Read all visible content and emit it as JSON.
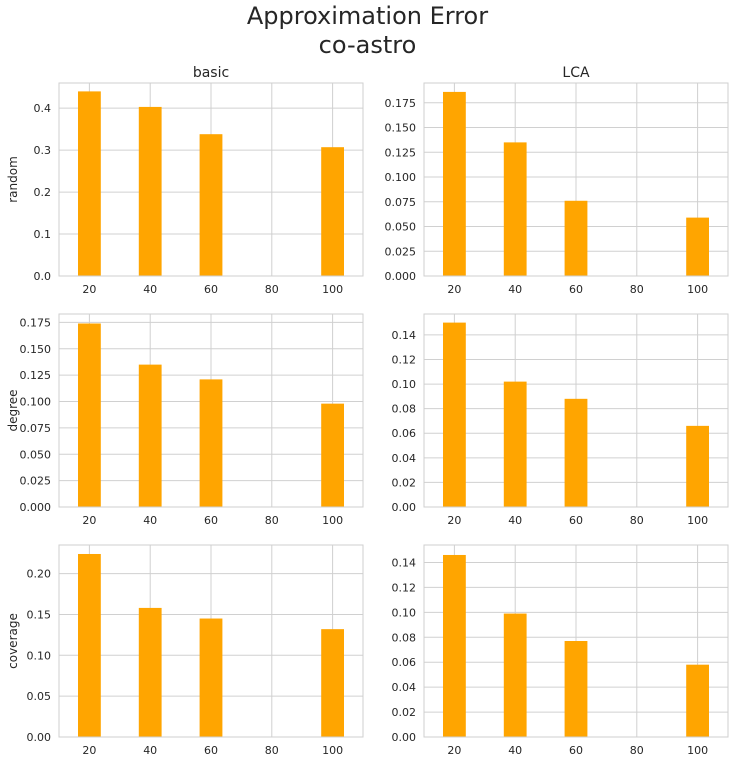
{
  "figure": {
    "title_line1": "Approximation Error",
    "title_line2": "co-astro"
  },
  "colors": {
    "bar": "#FFA500",
    "grid": "#d0d0d0",
    "frame": "#cfcfcf"
  },
  "chart_data": [
    {
      "type": "bar",
      "row": "random",
      "column": "basic",
      "title": "basic",
      "ylabel": "random",
      "x": [
        20,
        40,
        60,
        100
      ],
      "values": [
        0.44,
        0.403,
        0.338,
        0.307
      ],
      "ylim": [
        0,
        0.46
      ],
      "yticks": [
        "0.0",
        "0.1",
        "0.2",
        "0.3",
        "0.4"
      ],
      "ytick_values": [
        0,
        0.1,
        0.2,
        0.3,
        0.4
      ],
      "xlim": [
        10,
        110
      ],
      "xticks": [
        20,
        40,
        60,
        80,
        100
      ],
      "grid": true
    },
    {
      "type": "bar",
      "row": "random",
      "column": "LCA",
      "title": "LCA",
      "ylabel": "",
      "x": [
        20,
        40,
        60,
        100
      ],
      "values": [
        0.186,
        0.135,
        0.076,
        0.059
      ],
      "ylim": [
        0,
        0.195
      ],
      "yticks": [
        "0.000",
        "0.025",
        "0.050",
        "0.075",
        "0.100",
        "0.125",
        "0.150",
        "0.175"
      ],
      "ytick_values": [
        0,
        0.025,
        0.05,
        0.075,
        0.1,
        0.125,
        0.15,
        0.175
      ],
      "xlim": [
        10,
        110
      ],
      "xticks": [
        20,
        40,
        60,
        80,
        100
      ],
      "grid": true
    },
    {
      "type": "bar",
      "row": "degree",
      "column": "basic",
      "title": "",
      "ylabel": "degree",
      "x": [
        20,
        40,
        60,
        100
      ],
      "values": [
        0.174,
        0.135,
        0.121,
        0.098
      ],
      "ylim": [
        0,
        0.183
      ],
      "yticks": [
        "0.000",
        "0.025",
        "0.050",
        "0.075",
        "0.100",
        "0.125",
        "0.150",
        "0.175"
      ],
      "ytick_values": [
        0,
        0.025,
        0.05,
        0.075,
        0.1,
        0.125,
        0.15,
        0.175
      ],
      "xlim": [
        10,
        110
      ],
      "xticks": [
        20,
        40,
        60,
        80,
        100
      ],
      "grid": true
    },
    {
      "type": "bar",
      "row": "degree",
      "column": "LCA",
      "title": "",
      "ylabel": "",
      "x": [
        20,
        40,
        60,
        100
      ],
      "values": [
        0.15,
        0.102,
        0.088,
        0.066
      ],
      "ylim": [
        0,
        0.157
      ],
      "yticks": [
        "0.00",
        "0.02",
        "0.04",
        "0.06",
        "0.08",
        "0.10",
        "0.12",
        "0.14"
      ],
      "ytick_values": [
        0,
        0.02,
        0.04,
        0.06,
        0.08,
        0.1,
        0.12,
        0.14
      ],
      "xlim": [
        10,
        110
      ],
      "xticks": [
        20,
        40,
        60,
        80,
        100
      ],
      "grid": true
    },
    {
      "type": "bar",
      "row": "coverage",
      "column": "basic",
      "title": "",
      "ylabel": "coverage",
      "x": [
        20,
        40,
        60,
        100
      ],
      "values": [
        0.224,
        0.158,
        0.145,
        0.132
      ],
      "ylim": [
        0,
        0.235
      ],
      "yticks": [
        "0.00",
        "0.05",
        "0.10",
        "0.15",
        "0.20"
      ],
      "ytick_values": [
        0,
        0.05,
        0.1,
        0.15,
        0.2
      ],
      "xlim": [
        10,
        110
      ],
      "xticks": [
        20,
        40,
        60,
        80,
        100
      ],
      "grid": true
    },
    {
      "type": "bar",
      "row": "coverage",
      "column": "LCA",
      "title": "",
      "ylabel": "",
      "x": [
        20,
        40,
        60,
        100
      ],
      "values": [
        0.146,
        0.099,
        0.077,
        0.058
      ],
      "ylim": [
        0,
        0.154
      ],
      "yticks": [
        "0.00",
        "0.02",
        "0.04",
        "0.06",
        "0.08",
        "0.10",
        "0.12",
        "0.14"
      ],
      "ytick_values": [
        0,
        0.02,
        0.04,
        0.06,
        0.08,
        0.1,
        0.12,
        0.14
      ],
      "xlim": [
        10,
        110
      ],
      "xticks": [
        20,
        40,
        60,
        80,
        100
      ],
      "grid": true
    }
  ]
}
